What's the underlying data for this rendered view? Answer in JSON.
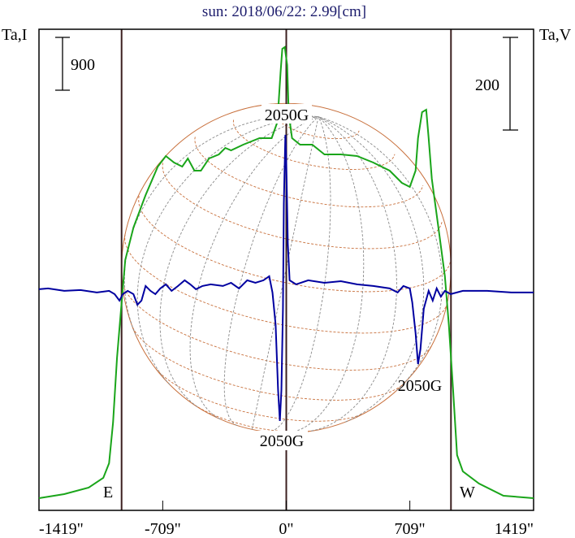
{
  "chart_data": {
    "type": "line",
    "title": "sun: 2018/06/22: 2.99[cm]",
    "ylabel_left": "Ta,I",
    "ylabel_right": "Ta,V",
    "xlim": [
      -1419,
      1419
    ],
    "ylim_left": [
      -180,
      8019
    ],
    "ylim_right": [
      -474,
      565
    ],
    "x_ticks": [
      -1419,
      -709,
      0,
      709,
      1419
    ],
    "x_tick_labels": [
      "-1419\"",
      "-709\"",
      "0\"",
      "709\"",
      "1419\""
    ],
    "limb_lines": [
      -945,
      0,
      945
    ],
    "limb_labels": {
      "east": "E",
      "west": "W"
    },
    "scale_bars": {
      "left": {
        "label": "900",
        "value": 900
      },
      "right": {
        "label": "200",
        "value": 200
      }
    },
    "annotations": [
      {
        "text": "2050G",
        "x": 0,
        "at": "top"
      },
      {
        "text": "2050G",
        "x": -28,
        "at": "bottom"
      },
      {
        "text": "2050G",
        "x": 770,
        "at": "right-spot"
      }
    ],
    "colors": {
      "stokes_i": "#1aa51a",
      "stokes_v": "#0000a0",
      "limb": "#3c2020",
      "grid": "#c8703c",
      "title": "#1c1c6c"
    },
    "series": [
      {
        "name": "Ta,I",
        "axis": "left",
        "points": [
          [
            -1419,
            28
          ],
          [
            -1274,
            97
          ],
          [
            -1134,
            208
          ],
          [
            -1050,
            374
          ],
          [
            -1017,
            623
          ],
          [
            -994,
            1316
          ],
          [
            -971,
            2424
          ],
          [
            -948,
            3255
          ],
          [
            -924,
            4086
          ],
          [
            -877,
            4640
          ],
          [
            -807,
            5194
          ],
          [
            -737,
            5678
          ],
          [
            -691,
            5858
          ],
          [
            -644,
            5747
          ],
          [
            -597,
            5678
          ],
          [
            -565,
            5817
          ],
          [
            -527,
            5609
          ],
          [
            -490,
            5609
          ],
          [
            -443,
            5817
          ],
          [
            -387,
            5886
          ],
          [
            -350,
            5997
          ],
          [
            -317,
            5955
          ],
          [
            -247,
            6052
          ],
          [
            -154,
            6163
          ],
          [
            -84,
            6163
          ],
          [
            -51,
            6440
          ],
          [
            -33,
            7271
          ],
          [
            -23,
            7687
          ],
          [
            -9,
            7714
          ],
          [
            5,
            7410
          ],
          [
            14,
            6578
          ],
          [
            33,
            6163
          ],
          [
            79,
            6052
          ],
          [
            149,
            6052
          ],
          [
            219,
            5886
          ],
          [
            313,
            5886
          ],
          [
            406,
            5858
          ],
          [
            499,
            5747
          ],
          [
            593,
            5609
          ],
          [
            663,
            5401
          ],
          [
            709,
            5332
          ],
          [
            742,
            5609
          ],
          [
            756,
            6163
          ],
          [
            779,
            6606
          ],
          [
            803,
            6648
          ],
          [
            817,
            6163
          ],
          [
            835,
            5470
          ],
          [
            873,
            4640
          ],
          [
            910,
            3809
          ],
          [
            933,
            2978
          ],
          [
            957,
            1870
          ],
          [
            980,
            762
          ],
          [
            1013,
            485
          ],
          [
            1106,
            277
          ],
          [
            1246,
            69
          ],
          [
            1419,
            28
          ]
        ]
      },
      {
        "name": "Ta,V",
        "axis": "right",
        "points": [
          [
            -1419,
            3.5
          ],
          [
            -1367,
            5.3
          ],
          [
            -1274,
            0
          ],
          [
            -1181,
            1.8
          ],
          [
            -1087,
            -3.5
          ],
          [
            -1017,
            0
          ],
          [
            -985,
            -7
          ],
          [
            -957,
            -21
          ],
          [
            -938,
            -7
          ],
          [
            -910,
            0
          ],
          [
            -877,
            -7
          ],
          [
            -854,
            -30
          ],
          [
            -831,
            -21
          ],
          [
            -807,
            10.5
          ],
          [
            -779,
            0
          ],
          [
            -751,
            -7
          ],
          [
            -723,
            5.3
          ],
          [
            -691,
            14
          ],
          [
            -658,
            0
          ],
          [
            -621,
            10.5
          ],
          [
            -583,
            22.8
          ],
          [
            -551,
            14
          ],
          [
            -518,
            3.5
          ],
          [
            -481,
            10.5
          ],
          [
            -434,
            14
          ],
          [
            -364,
            10.5
          ],
          [
            -317,
            17.5
          ],
          [
            -271,
            5.3
          ],
          [
            -224,
            22.8
          ],
          [
            -177,
            17.5
          ],
          [
            -131,
            22.8
          ],
          [
            -98,
            31.6
          ],
          [
            -79,
            -3.5
          ],
          [
            -61,
            -73.7
          ],
          [
            -47,
            -214
          ],
          [
            -37,
            -281
          ],
          [
            -28,
            -214
          ],
          [
            -19,
            -38.6
          ],
          [
            -14,
            189
          ],
          [
            -5,
            337
          ],
          [
            0,
            277
          ],
          [
            9,
            102
          ],
          [
            19,
            22.8
          ],
          [
            56,
            14
          ],
          [
            126,
            22.8
          ],
          [
            219,
            17.5
          ],
          [
            313,
            21
          ],
          [
            406,
            14
          ],
          [
            499,
            10.5
          ],
          [
            593,
            5.3
          ],
          [
            639,
            -3.5
          ],
          [
            672,
            10.5
          ],
          [
            709,
            5.3
          ],
          [
            723,
            -24.6
          ],
          [
            742,
            -91
          ],
          [
            756,
            -158
          ],
          [
            770,
            -126
          ],
          [
            789,
            -38.6
          ],
          [
            817,
            0
          ],
          [
            840,
            -21
          ],
          [
            863,
            5.3
          ],
          [
            887,
            -12.3
          ],
          [
            910,
            0
          ],
          [
            943,
            -7
          ],
          [
            1013,
            0
          ],
          [
            1153,
            0
          ],
          [
            1292,
            -3.5
          ],
          [
            1419,
            -3.5
          ]
        ]
      }
    ]
  }
}
